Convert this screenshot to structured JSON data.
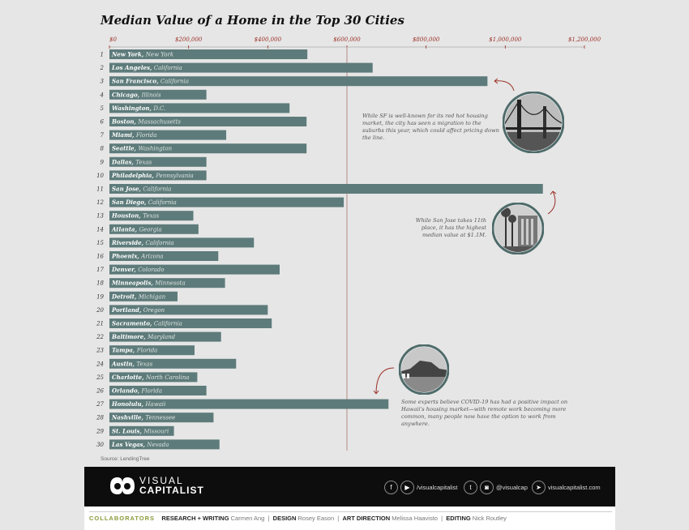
{
  "chart_data": {
    "type": "bar",
    "orientation": "horizontal",
    "title": "Median Value of a Home in the Top 30 Cities",
    "xlim": [
      0,
      1200000
    ],
    "ticks": [
      {
        "value": 0,
        "label": "$0"
      },
      {
        "value": 200000,
        "label": "$200,000"
      },
      {
        "value": 400000,
        "label": "$400,000"
      },
      {
        "value": 600000,
        "label": "$600,000"
      },
      {
        "value": 800000,
        "label": "$800,000"
      },
      {
        "value": 1000000,
        "label": "$1,000,000"
      },
      {
        "value": 1200000,
        "label": "$1,200,000"
      }
    ],
    "reference_value": 600000,
    "bars": [
      {
        "rank": "1",
        "city": "New York,",
        "state": "New York",
        "value": 500000
      },
      {
        "rank": "2",
        "city": "Los Angeles,",
        "state": "California",
        "value": 665000
      },
      {
        "rank": "3",
        "city": "San Francisco,",
        "state": "California",
        "value": 955000
      },
      {
        "rank": "4",
        "city": "Chicago,",
        "state": "Illinois",
        "value": 245000
      },
      {
        "rank": "5",
        "city": "Washington,",
        "state": "D.C.",
        "value": 455000
      },
      {
        "rank": "6",
        "city": "Boston,",
        "state": "Massachusetts",
        "value": 498000
      },
      {
        "rank": "7",
        "city": "Miami,",
        "state": "Florida",
        "value": 295000
      },
      {
        "rank": "8",
        "city": "Seattle,",
        "state": "Washington",
        "value": 498000
      },
      {
        "rank": "9",
        "city": "Dallas,",
        "state": "Texas",
        "value": 245000
      },
      {
        "rank": "10",
        "city": "Philadelphia,",
        "state": "Pennsylvania",
        "value": 245000
      },
      {
        "rank": "11",
        "city": "San Jose,",
        "state": "California",
        "value": 1095000
      },
      {
        "rank": "12",
        "city": "San Diego,",
        "state": "California",
        "value": 592000
      },
      {
        "rank": "13",
        "city": "Houston,",
        "state": "Texas",
        "value": 212000
      },
      {
        "rank": "14",
        "city": "Atlanta,",
        "state": "Georgia",
        "value": 225000
      },
      {
        "rank": "15",
        "city": "Riverside,",
        "state": "California",
        "value": 365000
      },
      {
        "rank": "16",
        "city": "Phoenix,",
        "state": "Arizona",
        "value": 275000
      },
      {
        "rank": "17",
        "city": "Denver,",
        "state": "Colorado",
        "value": 430000
      },
      {
        "rank": "18",
        "city": "Minneapolis,",
        "state": "Minnesota",
        "value": 292000
      },
      {
        "rank": "19",
        "city": "Detroit,",
        "state": "Michigan",
        "value": 172000
      },
      {
        "rank": "20",
        "city": "Portland,",
        "state": "Oregon",
        "value": 400000
      },
      {
        "rank": "21",
        "city": "Sacramento,",
        "state": "California",
        "value": 410000
      },
      {
        "rank": "22",
        "city": "Baltimore,",
        "state": "Maryland",
        "value": 282000
      },
      {
        "rank": "23",
        "city": "Tampa,",
        "state": "Florida",
        "value": 215000
      },
      {
        "rank": "24",
        "city": "Austin,",
        "state": "Texas",
        "value": 320000
      },
      {
        "rank": "25",
        "city": "Charlotte,",
        "state": "North Carolina",
        "value": 222000
      },
      {
        "rank": "26",
        "city": "Orlando,",
        "state": "Florida",
        "value": 245000
      },
      {
        "rank": "27",
        "city": "Honolulu,",
        "state": "Hawaii",
        "value": 705000
      },
      {
        "rank": "28",
        "city": "Nashville,",
        "state": "Tennessee",
        "value": 263000
      },
      {
        "rank": "29",
        "city": "St. Louis,",
        "state": "Missouri",
        "value": 163000
      },
      {
        "rank": "30",
        "city": "Las Vegas,",
        "state": "Nevada",
        "value": 278000
      }
    ],
    "annotations": [
      {
        "text": "While SF is well-known for its red hot housing market, the city has seen a migration to the suburbs this year, which could affect pricing down the line."
      },
      {
        "text": "While San Jose takes 11th place, it has the highest median value at $1.1M."
      },
      {
        "text": "Some experts believe COVID-19 has had a positive impact on Hawaii's housing market—with remote work becoming more common, many people now have the option to work from anywhere."
      }
    ]
  },
  "source": "Source: LendingTree",
  "colors": {
    "bar": "#5d7b7a",
    "tick": "#9b2f26",
    "reference_line": "#b58b86",
    "background": "#e6e6e6",
    "footer": "#0d0d0d",
    "collab_label": "#8a9a3a"
  },
  "footer": {
    "brand_line1": "VISUAL",
    "brand_line2": "CAPITALIST",
    "social": [
      {
        "icon": "facebook-icon",
        "glyph": "f"
      },
      {
        "icon": "youtube-icon",
        "glyph": "▶",
        "handle": "/visualcapitalist"
      },
      {
        "icon": "twitter-icon",
        "glyph": "t"
      },
      {
        "icon": "instagram-icon",
        "glyph": "◙",
        "handle": "@visualcap"
      },
      {
        "icon": "cursor-icon",
        "glyph": "➤",
        "handle": "visualcapitalist.com"
      }
    ]
  },
  "collaborators": {
    "label": "COLLABORATORS",
    "credits": [
      {
        "role": "RESEARCH + WRITING",
        "name": "Carmen Ang"
      },
      {
        "role": "DESIGN",
        "name": "Rosey Eason"
      },
      {
        "role": "ART DIRECTION",
        "name": "Melissa Haavisto"
      },
      {
        "role": "EDITING",
        "name": "Nick Routley"
      }
    ]
  }
}
